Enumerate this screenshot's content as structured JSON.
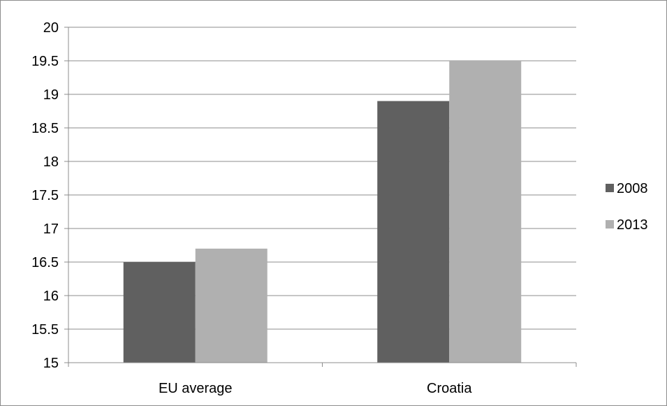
{
  "chart_data": {
    "type": "bar",
    "title": "",
    "xlabel": "",
    "ylabel": "",
    "categories": [
      "EU average",
      "Croatia"
    ],
    "series": [
      {
        "name": "2008",
        "color": "#606060",
        "values": [
          16.5,
          18.9
        ]
      },
      {
        "name": "2013",
        "color": "#b0b0b0",
        "values": [
          16.7,
          19.5
        ]
      }
    ],
    "ylim": [
      15,
      20
    ],
    "yticks": [
      "15",
      "15.5",
      "16",
      "16.5",
      "17",
      "17.5",
      "18",
      "18.5",
      "19",
      "19.5",
      "20"
    ],
    "grid": true,
    "legend_position": "right"
  }
}
